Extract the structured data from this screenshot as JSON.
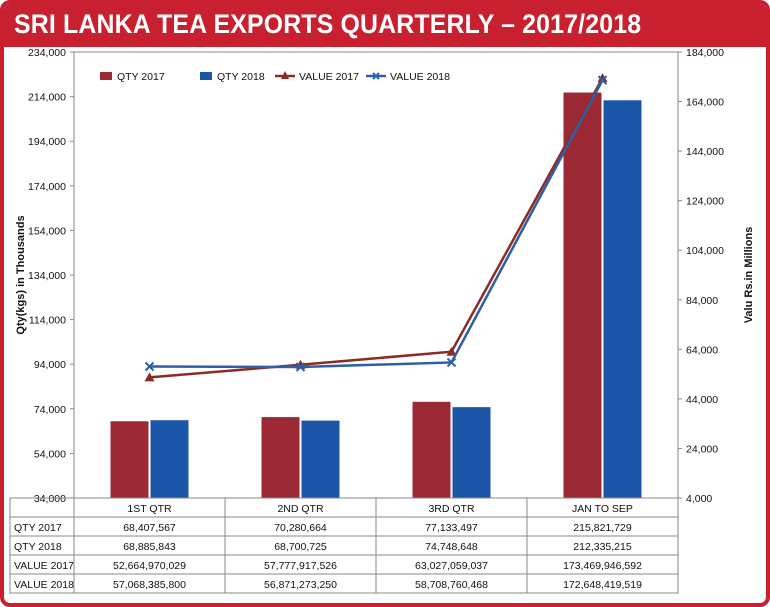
{
  "title": "SRI LANKA TEA EXPORTS QUARTERLY – 2017/2018",
  "chart_data": {
    "type": "bar",
    "title": "SRI LANKA TEA EXPORTS QUARTERLY – 2017/2018",
    "categories": [
      "1ST QTR",
      "2ND QTR",
      "3RD QTR",
      "JAN TO SEP"
    ],
    "ylabel": "Qty(kgs)  in Thousands",
    "y2label": "Valu Rs.in Millions",
    "ylim": [
      34000,
      234000
    ],
    "y2lim": [
      4000,
      184000
    ],
    "yticks": [
      "34,000",
      "54,000",
      "74,000",
      "94,000",
      "114,000",
      "134,000",
      "154,000",
      "174,000",
      "194,000",
      "214,000",
      "234,000"
    ],
    "y2ticks": [
      "4,000",
      "24,000",
      "44,000",
      "64,000",
      "84,000",
      "104,000",
      "124,000",
      "144,000",
      "164,000",
      "184,000"
    ],
    "legend_position": "top-left",
    "grid": false,
    "series": [
      {
        "name": "QTY 2017",
        "kind": "bar",
        "axis": "left",
        "color": "#9b2a35",
        "values": [
          68407.567,
          70280.664,
          77133.497,
          215821.729
        ]
      },
      {
        "name": "QTY 2018",
        "kind": "bar",
        "axis": "left",
        "color": "#1b56a8",
        "values": [
          68885.843,
          68700.725,
          74748.648,
          212335.215
        ]
      },
      {
        "name": "VALUE 2017",
        "kind": "line",
        "axis": "right",
        "marker": "triangle",
        "color": "#8b2c24",
        "values": [
          52664.970029,
          57777.917526,
          63027.059037,
          173469.946592
        ]
      },
      {
        "name": "VALUE 2018",
        "kind": "line",
        "axis": "right",
        "marker": "x",
        "color": "#2e5fa6",
        "values": [
          57068.3858,
          56871.27325,
          58708.760468,
          172648.419519
        ]
      }
    ],
    "table": {
      "rows": [
        {
          "label": "QTY 2017",
          "cells": [
            "68,407,567",
            "70,280,664",
            "77,133,497",
            "215,821,729"
          ]
        },
        {
          "label": "QTY 2018",
          "cells": [
            "68,885,843",
            "68,700,725",
            "74,748,648",
            "212,335,215"
          ]
        },
        {
          "label": "VALUE 2017",
          "cells": [
            "52,664,970,029",
            "57,777,917,526",
            "63,027,059,037",
            "173,469,946,592"
          ]
        },
        {
          "label": "VALUE 2018",
          "cells": [
            "57,068,385,800",
            "56,871,273,250",
            "58,708,760,468",
            "172,648,419,519"
          ]
        }
      ]
    }
  }
}
